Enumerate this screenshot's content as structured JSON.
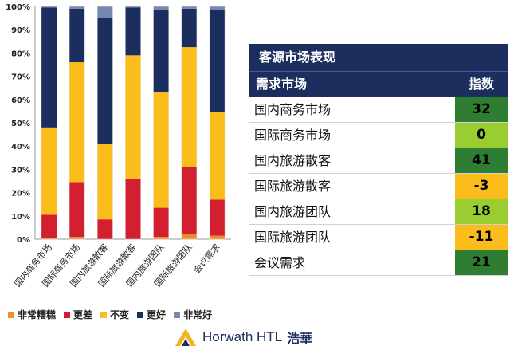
{
  "chart_data": {
    "type": "bar",
    "stacked": true,
    "percent_axis": true,
    "categories": [
      "国内商务市场",
      "国际商务市场",
      "国内旅游散客",
      "国际旅游散客",
      "国内旅游团队",
      "国际旅游团队",
      "会议需求"
    ],
    "series": [
      {
        "name": "非常糟糕",
        "color": "#f28c28",
        "values": [
          0.5,
          1,
          0,
          0,
          1,
          2,
          1.5
        ]
      },
      {
        "name": "更差",
        "color": "#d32030",
        "values": [
          10,
          23.5,
          8.5,
          26,
          12.5,
          29,
          15.5
        ]
      },
      {
        "name": "不变",
        "color": "#fbbd1b",
        "values": [
          37.5,
          51.5,
          32.5,
          53,
          49.5,
          51.5,
          37.5
        ]
      },
      {
        "name": "更好",
        "color": "#1c2e5e",
        "values": [
          51.5,
          23,
          54,
          20.5,
          35.5,
          16.5,
          44
        ]
      },
      {
        "name": "非常好",
        "color": "#7788b0",
        "values": [
          0.5,
          1,
          5,
          0.5,
          1.5,
          1,
          1.5
        ]
      }
    ],
    "ylim": [
      0,
      100
    ],
    "yticks": [
      "0%",
      "10%",
      "20%",
      "30%",
      "40%",
      "50%",
      "60%",
      "70%",
      "80%",
      "90%",
      "100%"
    ],
    "legend_position": "bottom-left"
  },
  "panel": {
    "title": "客源市场表现",
    "col_market": "需求市场",
    "col_index": "指数",
    "rows": [
      {
        "name": "国内商务市场",
        "value": "32",
        "color": "#2e7d32"
      },
      {
        "name": "国际商务市场",
        "value": "0",
        "color": "#9acd32"
      },
      {
        "name": "国内旅游散客",
        "value": "41",
        "color": "#2e7d32"
      },
      {
        "name": "国际旅游散客",
        "value": "-3",
        "color": "#fbbd1b"
      },
      {
        "name": "国内旅游团队",
        "value": "18",
        "color": "#9acd32"
      },
      {
        "name": "国际旅游团队",
        "value": "-11",
        "color": "#fbbd1b"
      },
      {
        "name": "会议需求",
        "value": "21",
        "color": "#2e7d32"
      }
    ]
  },
  "logo": {
    "brand": "Horwath HTL",
    "chinese": "浩華",
    "logo_icon": "horwath-chevron-logo"
  }
}
